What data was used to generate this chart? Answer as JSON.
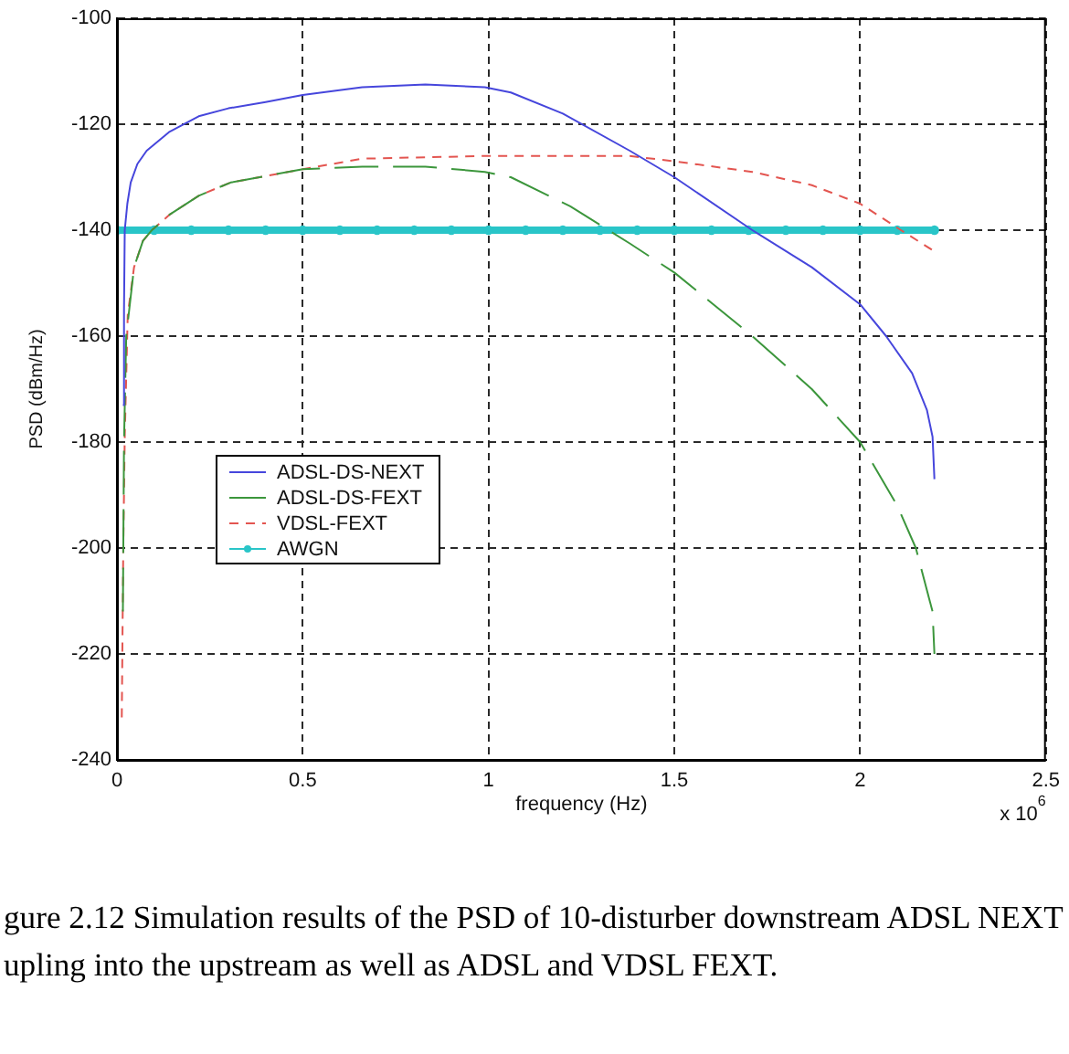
{
  "chart_data": {
    "type": "line",
    "xlabel": "frequency (Hz)",
    "ylabel": "PSD (dBm/Hz)",
    "annotations": [
      "x 10$^{6}$",
      "gure 2.12 Simulation results of the PSD of 10-disturber downstream ADSL NEXT",
      "upling into the upstream as well as ADSL and VDSL FEXT."
    ],
    "xlim": [
      0,
      2.5
    ],
    "xticks": [
      0,
      0.5,
      1,
      1.5,
      2,
      2.5
    ],
    "ylim": [
      -240,
      -100
    ],
    "yticks": [
      -240,
      -220,
      -200,
      -180,
      -160,
      -140,
      -120,
      -100
    ],
    "grid": true,
    "legend": "bottom left",
    "series": [
      {
        "name": "ADSL-DS-NEXT",
        "color": "#4646dc",
        "line_style": "solid",
        "x": [
          0.016,
          0.019,
          0.021,
          0.028,
          0.037,
          0.055,
          0.08,
          0.14,
          0.22,
          0.3,
          0.4,
          0.5,
          0.66,
          0.83,
          0.99,
          1.06,
          1.2,
          1.38,
          1.5,
          1.71,
          1.87,
          2.0,
          2.07,
          2.14,
          2.18,
          2.195,
          2.2
        ],
        "values": [
          -173,
          -155,
          -140,
          -135,
          -131,
          -127.5,
          -125,
          -121.5,
          -118.5,
          -117,
          -115.8,
          -114.5,
          -113,
          -112.5,
          -113,
          -114,
          -118,
          -125,
          -130,
          -140,
          -147,
          -154,
          -160,
          -167,
          -174,
          -179,
          -187
        ]
      },
      {
        "name": "ADSL-DS-FEXT",
        "color": "#3c963c",
        "line_style": "dashed",
        "x": [
          0.016,
          0.019,
          0.025,
          0.046,
          0.07,
          0.094,
          0.143,
          0.22,
          0.306,
          0.5,
          0.66,
          0.83,
          0.99,
          1.06,
          1.22,
          1.38,
          1.5,
          1.71,
          1.87,
          2.0,
          2.1,
          2.15,
          2.195,
          2.2
        ],
        "values": [
          -212,
          -180,
          -160,
          -147,
          -142,
          -140,
          -137,
          -133.5,
          -131,
          -128.5,
          -128,
          -128,
          -129,
          -130,
          -135.5,
          -142.5,
          -148,
          -160,
          -170,
          -180,
          -192,
          -200,
          -212,
          -220
        ]
      },
      {
        "name": "VDSL-FEXT",
        "color": "#e35550",
        "line_style": "dotted",
        "x": [
          0.013,
          0.017,
          0.021,
          0.029,
          0.046,
          0.07,
          0.094,
          0.143,
          0.22,
          0.306,
          0.5,
          0.66,
          0.99,
          1.06,
          1.38,
          1.5,
          1.71,
          1.87,
          2.0,
          2.11,
          2.2
        ],
        "values": [
          -232,
          -200,
          -179,
          -156,
          -147,
          -142,
          -140,
          -137,
          -133.5,
          -131,
          -128.5,
          -126.5,
          -126,
          -126,
          -126,
          -127,
          -129,
          -131.5,
          -135,
          -140,
          -144
        ]
      },
      {
        "name": "AWGN",
        "color": "#29c5c8",
        "line_style": "solid",
        "marker": "circle",
        "x": [
          0,
          0.1,
          0.2,
          0.3,
          0.4,
          0.5,
          0.6,
          0.7,
          0.8,
          0.9,
          1.0,
          1.1,
          1.2,
          1.3,
          1.4,
          1.5,
          1.6,
          1.7,
          1.8,
          1.9,
          2.0,
          2.1,
          2.2
        ],
        "values": [
          -140,
          -140,
          -140,
          -140,
          -140,
          -140,
          -140,
          -140,
          -140,
          -140,
          -140,
          -140,
          -140,
          -140,
          -140,
          -140,
          -140,
          -140,
          -140,
          -140,
          -140,
          -140,
          -140
        ]
      }
    ]
  }
}
